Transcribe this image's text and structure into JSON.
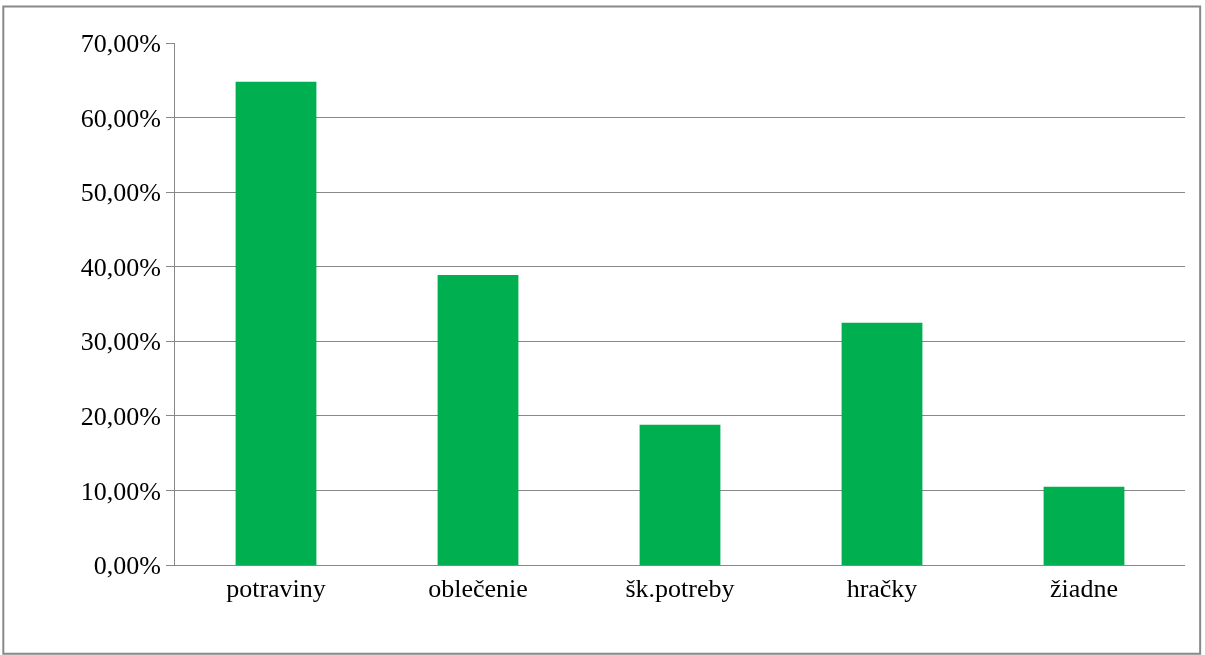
{
  "chart_data": {
    "type": "bar",
    "categories": [
      "potraviny",
      "oblečenie",
      "šk.potreby",
      "hračky",
      "žiadne"
    ],
    "values": [
      64.8,
      38.9,
      18.8,
      32.5,
      10.5
    ],
    "color": "#00b050",
    "ylim": [
      0,
      70
    ],
    "yticks": [
      {
        "value": 0,
        "label": "0,00%"
      },
      {
        "value": 10,
        "label": "10,00%"
      },
      {
        "value": 20,
        "label": "20,00%"
      },
      {
        "value": 30,
        "label": "30,00%"
      },
      {
        "value": 40,
        "label": "40,00%"
      },
      {
        "value": 50,
        "label": "50,00%"
      },
      {
        "value": 60,
        "label": "60,00%"
      },
      {
        "value": 70,
        "label": "70,00%"
      }
    ],
    "grid": "y"
  }
}
